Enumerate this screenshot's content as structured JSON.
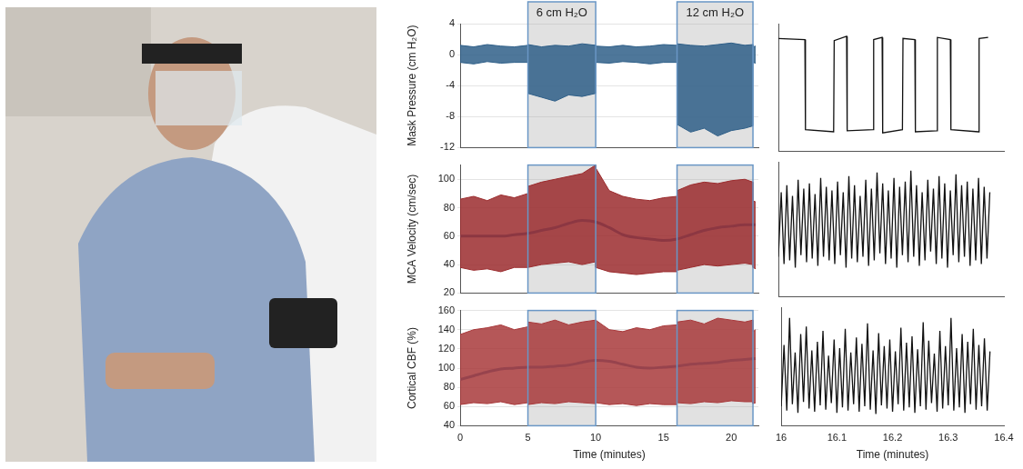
{
  "chart_data": [
    {
      "type": "line",
      "y_label": "Mask Pressure (cm H₂O)",
      "xlim": [
        0,
        22
      ],
      "xticks": [
        0,
        5,
        10,
        15,
        20
      ],
      "ylim": [
        -12,
        4
      ],
      "yticks": [
        -12,
        -8,
        -4,
        0,
        4
      ],
      "grid": true,
      "tick_labels": "y",
      "shaded_regions": [
        {
          "start": 5,
          "end": 10,
          "label": "6 cm H₂O"
        },
        {
          "start": 16,
          "end": 21.6,
          "label": "12 cm H₂O"
        }
      ],
      "band": {
        "color": "#2f5f88",
        "x": [
          0,
          1,
          2,
          3,
          4,
          5,
          5,
          6,
          7,
          8,
          9,
          10,
          10,
          11,
          12,
          13,
          14,
          15,
          16,
          16,
          17,
          18,
          19,
          20,
          21,
          21.6,
          21.6,
          21.8
        ],
        "upper": [
          1.2,
          1.0,
          1.3,
          1.1,
          1.0,
          1.2,
          1.3,
          1.0,
          1.2,
          1.1,
          1.4,
          1.2,
          1.1,
          1.0,
          1.2,
          1.0,
          1.1,
          1.3,
          1.2,
          1.4,
          1.2,
          1.1,
          1.3,
          1.5,
          1.2,
          1.3,
          1.0,
          1.1
        ],
        "lower": [
          -1.0,
          -1.2,
          -0.9,
          -1.1,
          -1.0,
          -1.0,
          -5.0,
          -5.5,
          -6.0,
          -5.2,
          -5.4,
          -5.0,
          -1.0,
          -1.1,
          -0.9,
          -1.0,
          -1.2,
          -1.0,
          -1.0,
          -9.0,
          -10.0,
          -9.5,
          -10.5,
          -9.8,
          -9.5,
          -9.2,
          -1.0,
          -1.1
        ]
      }
    },
    {
      "type": "line",
      "y_label": "MCA Velocity (cm/sec)",
      "xlim": [
        0,
        22
      ],
      "xticks": [
        0,
        5,
        10,
        15,
        20
      ],
      "ylim": [
        20,
        110
      ],
      "yticks": [
        20,
        40,
        60,
        80,
        100
      ],
      "grid": true,
      "tick_labels": "y",
      "shaded_regions": [
        {
          "start": 5,
          "end": 10
        },
        {
          "start": 16,
          "end": 21.6
        }
      ],
      "band": {
        "color": "#9b2c2e",
        "x": [
          0,
          1,
          2,
          3,
          4,
          5,
          5,
          6,
          7,
          8,
          9,
          10,
          10,
          11,
          12,
          13,
          14,
          15,
          16,
          16,
          17,
          18,
          19,
          20,
          21,
          21.6,
          21.6,
          21.8
        ],
        "upper": [
          86,
          88,
          85,
          89,
          87,
          90,
          95,
          98,
          100,
          102,
          104,
          110,
          108,
          92,
          88,
          86,
          85,
          87,
          88,
          92,
          96,
          98,
          97,
          99,
          100,
          98,
          85,
          84
        ],
        "lower": [
          38,
          36,
          37,
          35,
          38,
          38,
          38,
          40,
          41,
          42,
          40,
          42,
          38,
          35,
          34,
          33,
          34,
          35,
          35,
          36,
          38,
          40,
          39,
          40,
          41,
          40,
          38,
          37
        ]
      },
      "trend": {
        "color": "#3b79b4",
        "x": [
          0,
          1,
          2,
          3,
          4,
          5,
          6,
          7,
          8,
          9,
          10,
          11,
          12,
          13,
          14,
          15,
          16,
          17,
          18,
          19,
          20,
          21,
          21.8
        ],
        "values": [
          60,
          60,
          60,
          60,
          61,
          62,
          64,
          66,
          69,
          71,
          70,
          66,
          61,
          59,
          58,
          57,
          58,
          61,
          64,
          66,
          67,
          68,
          68
        ]
      }
    },
    {
      "type": "line",
      "x_label": "Time (minutes)",
      "y_label": "Cortical CBF (%)",
      "xlim": [
        0,
        22
      ],
      "xticks": [
        0,
        5,
        10,
        15,
        20
      ],
      "ylim": [
        40,
        160
      ],
      "yticks": [
        40,
        60,
        80,
        100,
        120,
        140,
        160
      ],
      "grid": true,
      "tick_labels": true,
      "shaded_regions": [
        {
          "start": 5,
          "end": 10
        },
        {
          "start": 16,
          "end": 21.6
        }
      ],
      "band": {
        "color": "#a8393b",
        "x": [
          0,
          1,
          2,
          3,
          4,
          5,
          5,
          6,
          7,
          8,
          9,
          10,
          10,
          11,
          12,
          13,
          14,
          15,
          16,
          16,
          17,
          18,
          19,
          20,
          21,
          21.6,
          21.6,
          21.8
        ],
        "upper": [
          135,
          140,
          142,
          145,
          140,
          143,
          148,
          146,
          150,
          145,
          148,
          150,
          150,
          140,
          138,
          142,
          140,
          144,
          145,
          148,
          150,
          146,
          152,
          150,
          148,
          150,
          138,
          140
        ],
        "lower": [
          62,
          64,
          63,
          65,
          62,
          64,
          62,
          64,
          63,
          65,
          64,
          63,
          64,
          62,
          63,
          61,
          63,
          62,
          62,
          64,
          63,
          65,
          64,
          66,
          65,
          65,
          63,
          64
        ]
      },
      "trend": {
        "color": "#3b79b4",
        "x": [
          0,
          1,
          2,
          3,
          4,
          5,
          6,
          7,
          8,
          9,
          10,
          11,
          12,
          13,
          14,
          15,
          16,
          17,
          18,
          19,
          20,
          21,
          21.8
        ],
        "values": [
          88,
          92,
          96,
          99,
          100,
          101,
          101,
          102,
          103,
          106,
          108,
          107,
          104,
          101,
          100,
          101,
          102,
          104,
          105,
          106,
          108,
          109,
          110
        ]
      }
    },
    {
      "type": "line",
      "xlim": [
        16,
        16.4
      ],
      "xticks": [
        16,
        16.1,
        16.2,
        16.3,
        16.4
      ],
      "ylim": [
        -10,
        2
      ],
      "grid": false,
      "tick_labels": false,
      "trace": {
        "color": "#111111",
        "x": [
          16,
          16.047,
          16.048,
          16.098,
          16.099,
          16.121,
          16.122,
          16.168,
          16.169,
          16.184,
          16.185,
          16.22,
          16.221,
          16.242,
          16.243,
          16.281,
          16.282,
          16.305,
          16.306,
          16.355,
          16.356,
          16.372
        ],
        "values": [
          0.6,
          0.5,
          -8,
          -8.2,
          0.4,
          0.8,
          -8.1,
          -8,
          0.5,
          0.7,
          -8.3,
          -8,
          0.6,
          0.5,
          -8.2,
          -8.1,
          0.7,
          0.5,
          -8,
          -8.2,
          0.6,
          0.7
        ]
      }
    },
    {
      "type": "line",
      "xlim": [
        16,
        16.4
      ],
      "xticks": [
        16,
        16.1,
        16.2,
        16.3,
        16.4
      ],
      "ylim": [
        30,
        105
      ],
      "grid": false,
      "tick_labels": false,
      "trace": {
        "color": "#111111",
        "x": [
          16,
          16.005,
          16.01,
          16.015,
          16.02,
          16.025,
          16.03,
          16.035,
          16.04,
          16.045,
          16.05,
          16.055,
          16.06,
          16.065,
          16.07,
          16.075,
          16.08,
          16.085,
          16.09,
          16.095,
          16.1,
          16.105,
          16.11,
          16.115,
          16.12,
          16.125,
          16.13,
          16.135,
          16.14,
          16.145,
          16.15,
          16.155,
          16.16,
          16.165,
          16.17,
          16.175,
          16.18,
          16.185,
          16.19,
          16.195,
          16.2,
          16.205,
          16.21,
          16.215,
          16.22,
          16.225,
          16.23,
          16.235,
          16.24,
          16.245,
          16.25,
          16.255,
          16.26,
          16.265,
          16.27,
          16.275,
          16.28,
          16.285,
          16.29,
          16.295,
          16.3,
          16.305,
          16.31,
          16.315,
          16.32,
          16.325,
          16.33,
          16.335,
          16.34,
          16.345,
          16.35,
          16.355,
          16.36,
          16.365,
          16.37,
          16.375
        ],
        "values": [
          52,
          88,
          48,
          92,
          50,
          86,
          46,
          95,
          53,
          90,
          49,
          93,
          51,
          87,
          47,
          96,
          52,
          91,
          50,
          89,
          48,
          94,
          53,
          88,
          46,
          97,
          51,
          92,
          49,
          86,
          52,
          95,
          47,
          90,
          50,
          99,
          54,
          93,
          48,
          89,
          51,
          96,
          46,
          91,
          53,
          94,
          49,
          100,
          52,
          92,
          47,
          88,
          50,
          95,
          55,
          90,
          48,
          97,
          51,
          93,
          46,
          89,
          53,
          98,
          49,
          92,
          52,
          94,
          47,
          90,
          50,
          96,
          48,
          91,
          51,
          88
        ]
      }
    },
    {
      "type": "line",
      "xlim": [
        16,
        16.4
      ],
      "xticks": [
        16,
        16.1,
        16.2,
        16.3,
        16.4
      ],
      "ylim": [
        50,
        160
      ],
      "grid": false,
      "tick_labels": "x",
      "x_label": "Time (minutes)",
      "trace": {
        "color": "#111111",
        "x": [
          16,
          16.005,
          16.01,
          16.015,
          16.02,
          16.025,
          16.03,
          16.035,
          16.04,
          16.045,
          16.05,
          16.055,
          16.06,
          16.065,
          16.07,
          16.075,
          16.08,
          16.085,
          16.09,
          16.095,
          16.1,
          16.105,
          16.11,
          16.115,
          16.12,
          16.125,
          16.13,
          16.135,
          16.14,
          16.145,
          16.15,
          16.155,
          16.16,
          16.165,
          16.17,
          16.175,
          16.18,
          16.185,
          16.19,
          16.195,
          16.2,
          16.205,
          16.21,
          16.215,
          16.22,
          16.225,
          16.23,
          16.235,
          16.24,
          16.245,
          16.25,
          16.255,
          16.26,
          16.265,
          16.27,
          16.275,
          16.28,
          16.285,
          16.29,
          16.295,
          16.3,
          16.305,
          16.31,
          16.315,
          16.32,
          16.325,
          16.33,
          16.335,
          16.34,
          16.345,
          16.35,
          16.355,
          16.36,
          16.365,
          16.37,
          16.375
        ],
        "values": [
          68,
          125,
          64,
          150,
          70,
          118,
          62,
          135,
          72,
          142,
          66,
          120,
          63,
          128,
          69,
          138,
          65,
          115,
          71,
          130,
          62,
          122,
          67,
          140,
          64,
          118,
          70,
          132,
          63,
          126,
          68,
          145,
          65,
          120,
          61,
          136,
          69,
          124,
          66,
          130,
          63,
          119,
          70,
          141,
          64,
          127,
          67,
          133,
          62,
          121,
          68,
          146,
          65,
          129,
          71,
          117,
          63,
          138,
          66,
          124,
          69,
          150,
          64,
          122,
          67,
          135,
          62,
          128,
          70,
          140,
          65,
          125,
          68,
          131,
          64,
          119
        ]
      }
    }
  ]
}
